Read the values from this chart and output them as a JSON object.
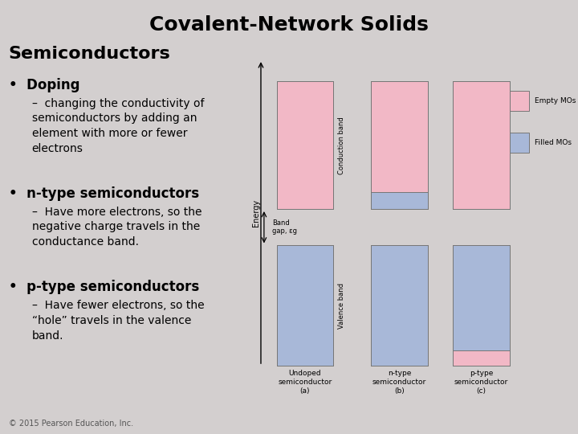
{
  "bg_color": "#d3cfcf",
  "title": "Covalent-Network Solids",
  "subtitle": "Semiconductors",
  "title_fontsize": 18,
  "subtitle_fontsize": 16,
  "bullet_fontsize": 12,
  "sub_bullet_fontsize": 10,
  "copyright": "© 2015 Pearson Education, Inc.",
  "bullets": [
    {
      "main": "Doping",
      "sub": "changing the conductivity of\nsemiconductors by adding an\nelement with more or fewer\nelectrons"
    },
    {
      "main": "n-type semiconductors",
      "sub": "Have more electrons, so the\nnegative charge travels in the\nconductance band."
    },
    {
      "main": "p-type semiconductors",
      "sub": "Have fewer electrons, so the\n“hole” travels in the valence\nband."
    }
  ],
  "empty_color": "#f2b8c6",
  "filled_color": "#a8b8d8",
  "diagram": {
    "energy_label": "Energy",
    "conduction_label": "Conduction band",
    "valence_label": "Valence band",
    "band_gap_label": "Band\ngap, εg",
    "columns": [
      {
        "label": "Undoped\nsemiconductor\n(a)",
        "valence_filled": 1.0,
        "valence_empty": 0.0,
        "conduction_filled": 0.0,
        "conduction_empty": 1.0
      },
      {
        "label": "n-type\nsemiconductor\n(b)",
        "valence_filled": 1.0,
        "valence_empty": 0.0,
        "conduction_filled": 0.13,
        "conduction_empty": 0.87
      },
      {
        "label": "p-type\nsemiconductor\n(c)",
        "valence_filled": 0.87,
        "valence_empty": 0.13,
        "conduction_filled": 0.0,
        "conduction_empty": 1.0
      }
    ]
  }
}
